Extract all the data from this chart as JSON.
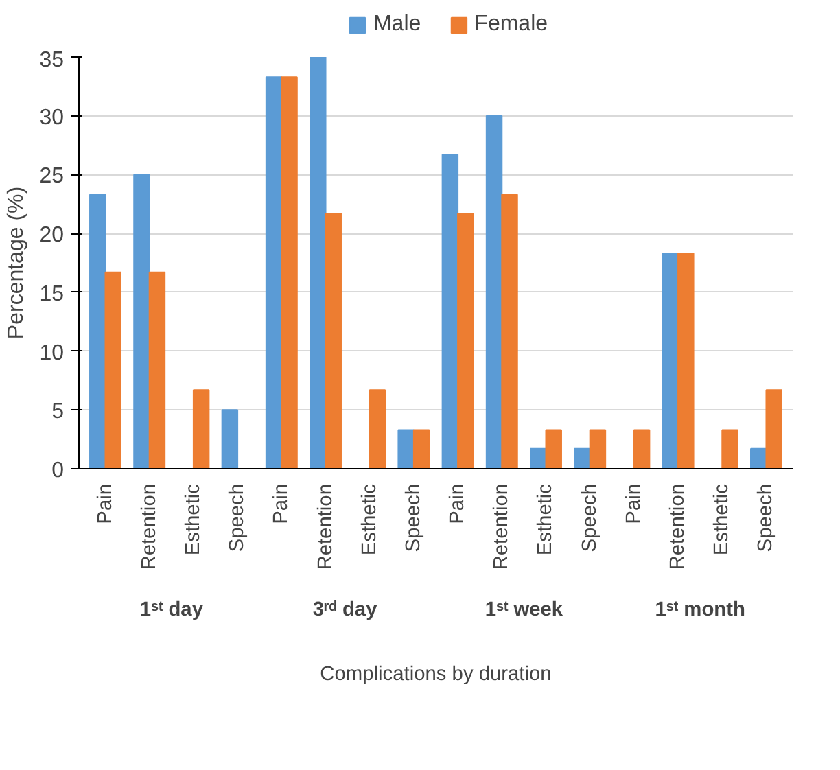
{
  "chart_data": {
    "type": "bar",
    "xlabel": "Complications by duration",
    "ylabel": "Percentage (%)",
    "categories": [
      "Pain",
      "Retention",
      "Esthetic",
      "Speech",
      "Pain",
      "Retention",
      "Esthetic",
      "Speech",
      "Pain",
      "Retention",
      "Esthetic",
      "Speech",
      "Pain",
      "Retention",
      "Esthetic",
      "Speech"
    ],
    "annotations": [
      "1ˢᵗ day",
      "3ʳᵈ  day",
      "1ˢᵗ week",
      "1ˢᵗ month"
    ],
    "series": [
      {
        "name": "Male",
        "color": "#5b9bd5",
        "values": [
          23.3,
          25,
          0,
          5,
          33.3,
          35,
          0,
          3.3,
          26.7,
          30,
          1.7,
          1.7,
          0,
          18.3,
          0,
          1.7
        ]
      },
      {
        "name": "Female",
        "color": "#ed7d31",
        "values": [
          16.7,
          16.7,
          6.7,
          0,
          33.3,
          21.7,
          6.7,
          3.3,
          21.7,
          23.3,
          3.3,
          3.3,
          3.3,
          18.3,
          3.3,
          6.7
        ]
      }
    ],
    "ylim": [
      0,
      35
    ],
    "yticks": [
      0,
      5,
      10,
      15,
      20,
      25,
      30,
      35
    ],
    "grid": "y",
    "legend": "top"
  }
}
